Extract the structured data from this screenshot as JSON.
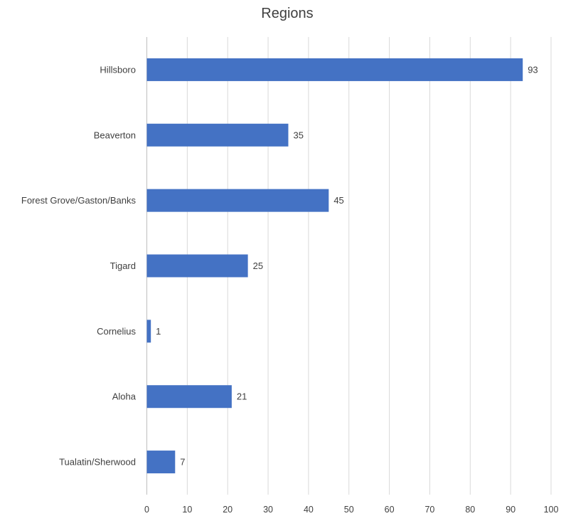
{
  "chart_data": {
    "type": "bar",
    "orientation": "horizontal",
    "title": "Regions",
    "categories": [
      "Hillsboro",
      "Beaverton",
      "Forest Grove/Gaston/Banks",
      "Tigard",
      "Cornelius",
      "Aloha",
      "Tualatin/Sherwood"
    ],
    "values": [
      93,
      35,
      45,
      25,
      1,
      21,
      7
    ],
    "xlim": [
      0,
      100
    ],
    "xticks": [
      0,
      10,
      20,
      30,
      40,
      50,
      60,
      70,
      80,
      90,
      100
    ],
    "grid": true,
    "legend": "none",
    "bar_color": "#4472c4"
  }
}
